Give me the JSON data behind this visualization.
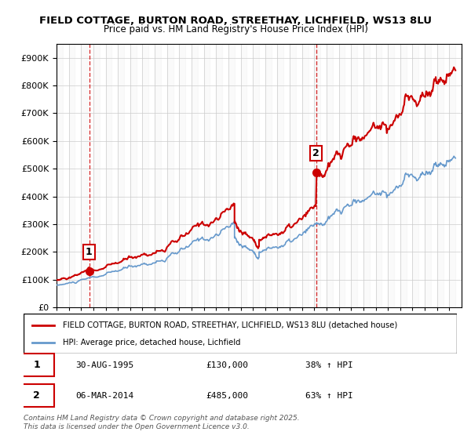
{
  "title1": "FIELD COTTAGE, BURTON ROAD, STREETHAY, LICHFIELD, WS13 8LU",
  "title2": "Price paid vs. HM Land Registry's House Price Index (HPI)",
  "ylabel_ticks": [
    "£0",
    "£100K",
    "£200K",
    "£300K",
    "£400K",
    "£500K",
    "£600K",
    "£700K",
    "£800K",
    "£900K"
  ],
  "ytick_vals": [
    0,
    100000,
    200000,
    300000,
    400000,
    500000,
    600000,
    700000,
    800000,
    900000
  ],
  "ylim": [
    0,
    950000
  ],
  "xlim_start": 1993.0,
  "xlim_end": 2026.0,
  "marker1_x": 1995.66,
  "marker1_y": 130000,
  "marker1_label": "1",
  "marker2_x": 2014.17,
  "marker2_y": 485000,
  "marker2_label": "2",
  "legend_line1": "FIELD COTTAGE, BURTON ROAD, STREETHAY, LICHFIELD, WS13 8LU (detached house)",
  "legend_line2": "HPI: Average price, detached house, Lichfield",
  "table_row1": [
    "1",
    "30-AUG-1995",
    "£130,000",
    "38% ↑ HPI"
  ],
  "table_row2": [
    "2",
    "06-MAR-2014",
    "£485,000",
    "63% ↑ HPI"
  ],
  "footer": "Contains HM Land Registry data © Crown copyright and database right 2025.\nThis data is licensed under the Open Government Licence v3.0.",
  "red_color": "#cc0000",
  "blue_color": "#6699cc",
  "background_color": "#ffffff",
  "grid_color": "#cccccc",
  "hatch_color": "#dddddd"
}
